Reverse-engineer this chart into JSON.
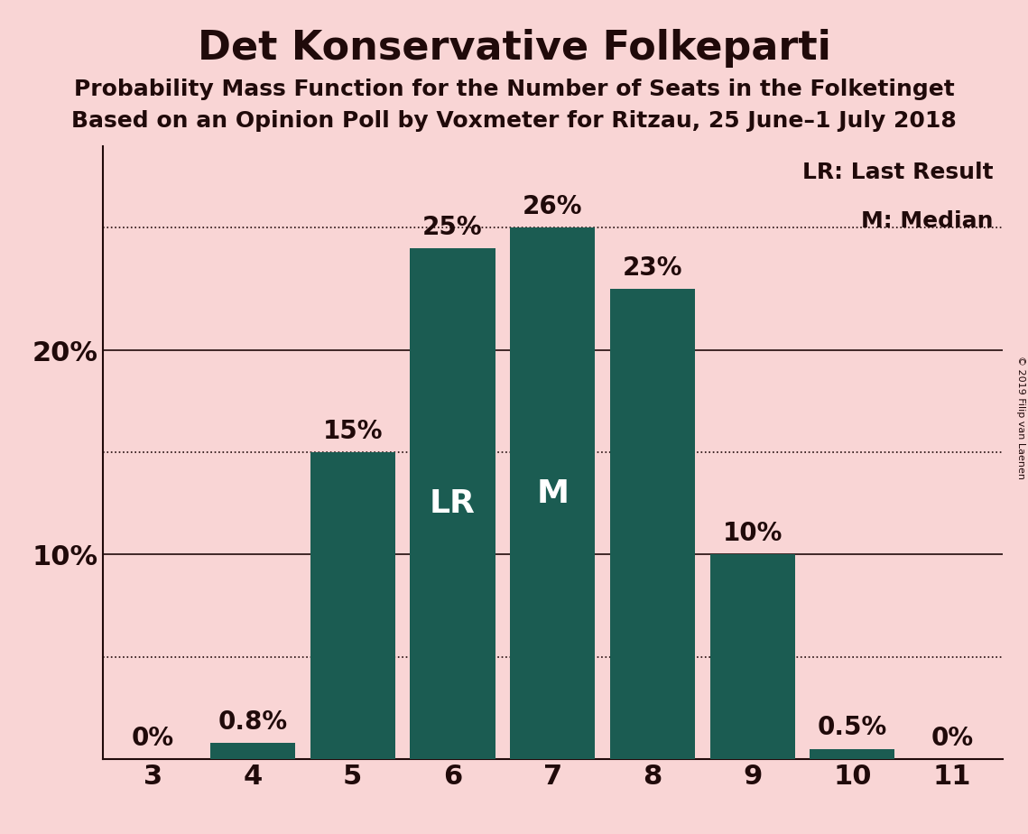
{
  "title": "Det Konservative Folkeparti",
  "subtitle1": "Probability Mass Function for the Number of Seats in the Folketinget",
  "subtitle2": "Based on an Opinion Poll by Voxmeter for Ritzau, 25 June–1 July 2018",
  "copyright": "© 2019 Filip van Laenen",
  "categories": [
    3,
    4,
    5,
    6,
    7,
    8,
    9,
    10,
    11
  ],
  "values": [
    0.0,
    0.8,
    15.0,
    25.0,
    26.0,
    23.0,
    10.0,
    0.5,
    0.0
  ],
  "bar_color": "#1b5c52",
  "background_color": "#f9d5d5",
  "text_color": "#200a0a",
  "bar_labels": [
    "0%",
    "0.8%",
    "15%",
    "25%",
    "26%",
    "23%",
    "10%",
    "0.5%",
    "0%"
  ],
  "lr_bar_seat": 6,
  "median_bar_seat": 7,
  "lr_label": "LR",
  "median_label": "M",
  "lr_legend": "LR: Last Result",
  "median_legend": "M: Median",
  "ylim": [
    0,
    30
  ],
  "solid_lines": [
    10.0,
    20.0
  ],
  "dotted_lines": [
    5.0,
    15.0,
    26.0
  ],
  "title_fontsize": 32,
  "subtitle_fontsize": 18,
  "bar_label_fontsize": 20,
  "axis_label_fontsize": 22,
  "legend_fontsize": 18,
  "inner_label_fontsize": 26
}
